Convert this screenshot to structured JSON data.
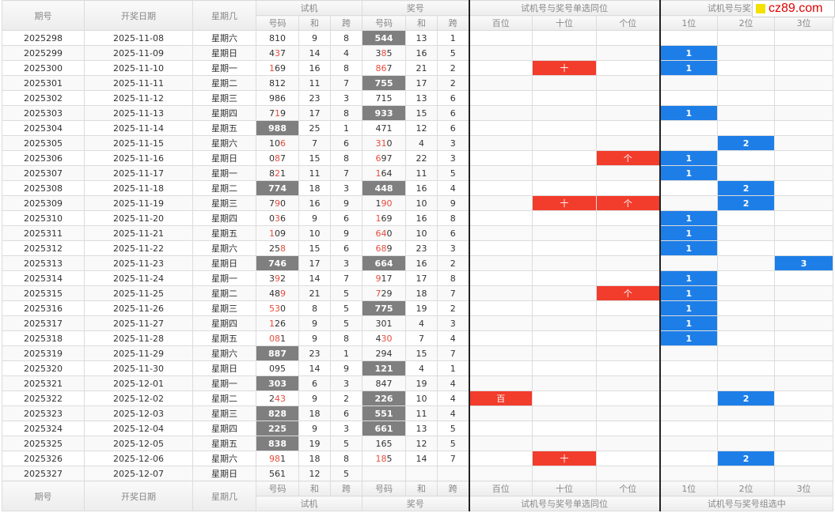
{
  "header": {
    "issue": "期号",
    "date": "开奖日期",
    "weekday": "星期几",
    "trial": "试机",
    "prize": "奖号",
    "single": "试机号与奖号单选同位",
    "group": "试机号与奖号组选中",
    "sub": {
      "code": "号码",
      "sum": "和",
      "span": "跨",
      "hundreds": "百位",
      "tens": "十位",
      "ones": "个位",
      "p1": "1位",
      "p2": "2位",
      "p3": "3位"
    }
  },
  "logo": {
    "text": "cz89.com"
  },
  "colors": {
    "highlight_gray": "#7f7f7f",
    "digit_red": "#e84c3d",
    "single_red": "#f23c2c",
    "group_blue": "#1e7ee8"
  },
  "rows": [
    {
      "issue": "2025298",
      "date": "2025-11-08",
      "weekday": "星期六",
      "trial": "810",
      "tsum": "9",
      "tspan": "8",
      "prize": "544",
      "psum": "13",
      "pspan": "1",
      "h": "",
      "t": "",
      "o": "",
      "g1": "",
      "g2": "",
      "g3": ""
    },
    {
      "issue": "2025299",
      "date": "2025-11-09",
      "weekday": "星期日",
      "trial": "437",
      "tsum": "14",
      "tspan": "4",
      "prize": "385",
      "psum": "16",
      "pspan": "5",
      "h": "",
      "t": "",
      "o": "",
      "g1": "1",
      "g2": "",
      "g3": ""
    },
    {
      "issue": "2025300",
      "date": "2025-11-10",
      "weekday": "星期一",
      "trial": "169",
      "tsum": "16",
      "tspan": "8",
      "prize": "867",
      "psum": "21",
      "pspan": "2",
      "h": "",
      "t": "十",
      "o": "",
      "g1": "1",
      "g2": "",
      "g3": ""
    },
    {
      "issue": "2025301",
      "date": "2025-11-11",
      "weekday": "星期二",
      "trial": "812",
      "tsum": "11",
      "tspan": "7",
      "prize": "755",
      "psum": "17",
      "pspan": "2",
      "h": "",
      "t": "",
      "o": "",
      "g1": "",
      "g2": "",
      "g3": ""
    },
    {
      "issue": "2025302",
      "date": "2025-11-12",
      "weekday": "星期三",
      "trial": "986",
      "tsum": "23",
      "tspan": "3",
      "prize": "715",
      "psum": "13",
      "pspan": "6",
      "h": "",
      "t": "",
      "o": "",
      "g1": "",
      "g2": "",
      "g3": ""
    },
    {
      "issue": "2025303",
      "date": "2025-11-13",
      "weekday": "星期四",
      "trial": "719",
      "tsum": "17",
      "tspan": "8",
      "prize": "933",
      "psum": "15",
      "pspan": "6",
      "h": "",
      "t": "",
      "o": "",
      "g1": "1",
      "g2": "",
      "g3": ""
    },
    {
      "issue": "2025304",
      "date": "2025-11-14",
      "weekday": "星期五",
      "trial": "988",
      "tsum": "25",
      "tspan": "1",
      "prize": "471",
      "psum": "12",
      "pspan": "6",
      "h": "",
      "t": "",
      "o": "",
      "g1": "",
      "g2": "",
      "g3": ""
    },
    {
      "issue": "2025305",
      "date": "2025-11-15",
      "weekday": "星期六",
      "trial": "106",
      "tsum": "7",
      "tspan": "6",
      "prize": "310",
      "psum": "4",
      "pspan": "3",
      "h": "",
      "t": "",
      "o": "",
      "g1": "",
      "g2": "2",
      "g3": ""
    },
    {
      "issue": "2025306",
      "date": "2025-11-16",
      "weekday": "星期日",
      "trial": "087",
      "tsum": "15",
      "tspan": "8",
      "prize": "697",
      "psum": "22",
      "pspan": "3",
      "h": "",
      "t": "",
      "o": "个",
      "g1": "1",
      "g2": "",
      "g3": ""
    },
    {
      "issue": "2025307",
      "date": "2025-11-17",
      "weekday": "星期一",
      "trial": "821",
      "tsum": "11",
      "tspan": "7",
      "prize": "164",
      "psum": "11",
      "pspan": "5",
      "h": "",
      "t": "",
      "o": "",
      "g1": "1",
      "g2": "",
      "g3": ""
    },
    {
      "issue": "2025308",
      "date": "2025-11-18",
      "weekday": "星期二",
      "trial": "774",
      "tsum": "18",
      "tspan": "3",
      "prize": "448",
      "psum": "16",
      "pspan": "4",
      "h": "",
      "t": "",
      "o": "",
      "g1": "",
      "g2": "2",
      "g3": ""
    },
    {
      "issue": "2025309",
      "date": "2025-11-19",
      "weekday": "星期三",
      "trial": "790",
      "tsum": "16",
      "tspan": "9",
      "prize": "190",
      "psum": "10",
      "pspan": "9",
      "h": "",
      "t": "十",
      "o": "个",
      "g1": "",
      "g2": "2",
      "g3": ""
    },
    {
      "issue": "2025310",
      "date": "2025-11-20",
      "weekday": "星期四",
      "trial": "036",
      "tsum": "9",
      "tspan": "6",
      "prize": "169",
      "psum": "16",
      "pspan": "8",
      "h": "",
      "t": "",
      "o": "",
      "g1": "1",
      "g2": "",
      "g3": ""
    },
    {
      "issue": "2025311",
      "date": "2025-11-21",
      "weekday": "星期五",
      "trial": "109",
      "tsum": "10",
      "tspan": "9",
      "prize": "640",
      "psum": "10",
      "pspan": "6",
      "h": "",
      "t": "",
      "o": "",
      "g1": "1",
      "g2": "",
      "g3": ""
    },
    {
      "issue": "2025312",
      "date": "2025-11-22",
      "weekday": "星期六",
      "trial": "258",
      "tsum": "15",
      "tspan": "6",
      "prize": "689",
      "psum": "23",
      "pspan": "3",
      "h": "",
      "t": "",
      "o": "",
      "g1": "1",
      "g2": "",
      "g3": ""
    },
    {
      "issue": "2025313",
      "date": "2025-11-23",
      "weekday": "星期日",
      "trial": "746",
      "tsum": "17",
      "tspan": "3",
      "prize": "664",
      "psum": "16",
      "pspan": "2",
      "h": "",
      "t": "",
      "o": "",
      "g1": "",
      "g2": "",
      "g3": "3"
    },
    {
      "issue": "2025314",
      "date": "2025-11-24",
      "weekday": "星期一",
      "trial": "392",
      "tsum": "14",
      "tspan": "7",
      "prize": "917",
      "psum": "17",
      "pspan": "8",
      "h": "",
      "t": "",
      "o": "",
      "g1": "1",
      "g2": "",
      "g3": ""
    },
    {
      "issue": "2025315",
      "date": "2025-11-25",
      "weekday": "星期二",
      "trial": "489",
      "tsum": "21",
      "tspan": "5",
      "prize": "729",
      "psum": "18",
      "pspan": "7",
      "h": "",
      "t": "",
      "o": "个",
      "g1": "1",
      "g2": "",
      "g3": ""
    },
    {
      "issue": "2025316",
      "date": "2025-11-26",
      "weekday": "星期三",
      "trial": "530",
      "tsum": "8",
      "tspan": "5",
      "prize": "775",
      "psum": "19",
      "pspan": "2",
      "h": "",
      "t": "",
      "o": "",
      "g1": "1",
      "g2": "",
      "g3": ""
    },
    {
      "issue": "2025317",
      "date": "2025-11-27",
      "weekday": "星期四",
      "trial": "126",
      "tsum": "9",
      "tspan": "5",
      "prize": "301",
      "psum": "4",
      "pspan": "3",
      "h": "",
      "t": "",
      "o": "",
      "g1": "1",
      "g2": "",
      "g3": ""
    },
    {
      "issue": "2025318",
      "date": "2025-11-28",
      "weekday": "星期五",
      "trial": "081",
      "tsum": "9",
      "tspan": "8",
      "prize": "430",
      "psum": "7",
      "pspan": "4",
      "h": "",
      "t": "",
      "o": "",
      "g1": "1",
      "g2": "",
      "g3": ""
    },
    {
      "issue": "2025319",
      "date": "2025-11-29",
      "weekday": "星期六",
      "trial": "887",
      "tsum": "23",
      "tspan": "1",
      "prize": "294",
      "psum": "15",
      "pspan": "7",
      "h": "",
      "t": "",
      "o": "",
      "g1": "",
      "g2": "",
      "g3": ""
    },
    {
      "issue": "2025320",
      "date": "2025-11-30",
      "weekday": "星期日",
      "trial": "095",
      "tsum": "14",
      "tspan": "9",
      "prize": "121",
      "psum": "4",
      "pspan": "1",
      "h": "",
      "t": "",
      "o": "",
      "g1": "",
      "g2": "",
      "g3": ""
    },
    {
      "issue": "2025321",
      "date": "2025-12-01",
      "weekday": "星期一",
      "trial": "303",
      "tsum": "6",
      "tspan": "3",
      "prize": "847",
      "psum": "19",
      "pspan": "4",
      "h": "",
      "t": "",
      "o": "",
      "g1": "",
      "g2": "",
      "g3": ""
    },
    {
      "issue": "2025322",
      "date": "2025-12-02",
      "weekday": "星期二",
      "trial": "243",
      "tsum": "9",
      "tspan": "2",
      "prize": "226",
      "psum": "10",
      "pspan": "4",
      "h": "百",
      "t": "",
      "o": "",
      "g1": "",
      "g2": "2",
      "g3": ""
    },
    {
      "issue": "2025323",
      "date": "2025-12-03",
      "weekday": "星期三",
      "trial": "828",
      "tsum": "18",
      "tspan": "6",
      "prize": "551",
      "psum": "11",
      "pspan": "4",
      "h": "",
      "t": "",
      "o": "",
      "g1": "",
      "g2": "",
      "g3": ""
    },
    {
      "issue": "2025324",
      "date": "2025-12-04",
      "weekday": "星期四",
      "trial": "225",
      "tsum": "9",
      "tspan": "3",
      "prize": "661",
      "psum": "13",
      "pspan": "5",
      "h": "",
      "t": "",
      "o": "",
      "g1": "",
      "g2": "",
      "g3": ""
    },
    {
      "issue": "2025325",
      "date": "2025-12-05",
      "weekday": "星期五",
      "trial": "838",
      "tsum": "19",
      "tspan": "5",
      "prize": "165",
      "psum": "12",
      "pspan": "5",
      "h": "",
      "t": "",
      "o": "",
      "g1": "",
      "g2": "",
      "g3": ""
    },
    {
      "issue": "2025326",
      "date": "2025-12-06",
      "weekday": "星期六",
      "trial": "981",
      "tsum": "18",
      "tspan": "8",
      "prize": "185",
      "psum": "14",
      "pspan": "7",
      "h": "",
      "t": "十",
      "o": "",
      "g1": "",
      "g2": "2",
      "g3": ""
    },
    {
      "issue": "2025327",
      "date": "2025-12-07",
      "weekday": "星期日",
      "trial": "561",
      "tsum": "12",
      "tspan": "5",
      "prize": "",
      "psum": "",
      "pspan": "",
      "h": "",
      "t": "",
      "o": "",
      "g1": "",
      "g2": "",
      "g3": ""
    }
  ],
  "styling": {
    "trial_gray_rows": [
      6,
      10,
      15,
      21,
      23,
      25,
      26,
      27
    ],
    "prize_gray_rows": [
      0,
      3,
      5,
      10,
      15,
      18,
      22,
      24,
      25,
      26
    ],
    "trial_red_digits": {
      "1": [
        1
      ],
      "2": [
        0
      ],
      "5": [
        1
      ],
      "6": [
        0
      ],
      "7": [
        2
      ],
      "8": [
        1
      ],
      "9": [
        1
      ],
      "10": [
        2
      ],
      "11": [
        1
      ],
      "12": [
        1
      ],
      "13": [
        0
      ],
      "14": [
        2
      ],
      "15": [
        0,
        1
      ],
      "16": [
        1
      ],
      "17": [
        2
      ],
      "18": [
        0,
        1
      ],
      "19": [
        0
      ],
      "20": [
        0,
        1
      ],
      "24": [
        1,
        2
      ],
      "28": [
        0,
        1
      ]
    },
    "prize_red_digits": {
      "1": [
        1
      ],
      "2": [
        0,
        1
      ],
      "5": [
        1,
        2
      ],
      "7": [
        0,
        1
      ],
      "8": [
        0
      ],
      "9": [
        0
      ],
      "10": [
        0,
        1,
        2
      ],
      "11": [
        1,
        2
      ],
      "12": [
        0
      ],
      "13": [
        0,
        1
      ],
      "14": [
        0,
        1
      ],
      "15": [
        0,
        1,
        2
      ],
      "16": [
        0
      ],
      "17": [
        0
      ],
      "18": [
        0,
        1,
        2
      ],
      "20": [
        1,
        2
      ],
      "24": [
        0,
        1
      ],
      "28": [
        0,
        1
      ]
    }
  }
}
